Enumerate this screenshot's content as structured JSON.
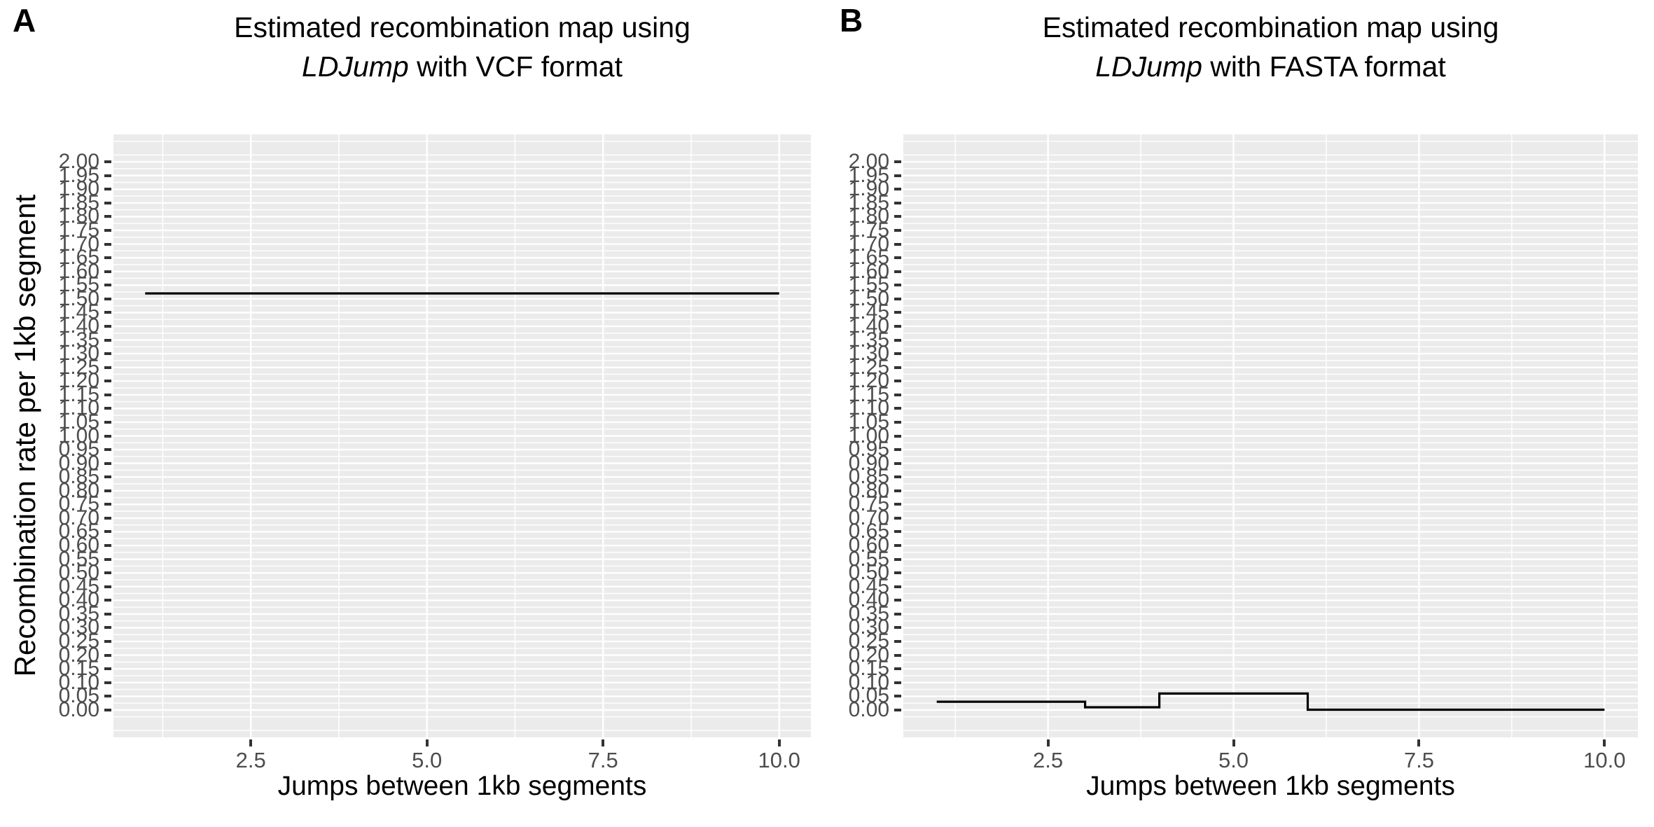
{
  "chart_data": [
    {
      "type": "line",
      "line_style": "step",
      "panel_label": "A",
      "title": "Estimated recombination map using LDJump with VCF format",
      "title_line1": "Estimated recombination map using",
      "title_italic": "LDJump",
      "title_line2_rest": " with VCF format",
      "xlabel": "Jumps between 1kb segments",
      "ylabel": "Recombination rate per 1kb segment",
      "xlim": [
        0.55,
        10.45
      ],
      "ylim": [
        -0.1,
        2.1
      ],
      "x_ticks": [
        2.5,
        5.0,
        7.5,
        10.0
      ],
      "x_tick_labels": [
        "2.5",
        "5.0",
        "7.5",
        "10.0"
      ],
      "y_tick_min": 0.0,
      "y_tick_max": 2.0,
      "y_tick_step": 0.05,
      "y_tick_labels": [
        "0.00",
        "0.05",
        "0.10",
        "0.15",
        "0.20",
        "0.25",
        "0.30",
        "0.35",
        "0.40",
        "0.45",
        "0.50",
        "0.55",
        "0.60",
        "0.65",
        "0.70",
        "0.75",
        "0.80",
        "0.85",
        "0.90",
        "0.95",
        "1.00",
        "1.05",
        "1.10",
        "1.15",
        "1.20",
        "1.25",
        "1.30",
        "1.35",
        "1.40",
        "1.45",
        "1.50",
        "1.55",
        "1.60",
        "1.65",
        "1.70",
        "1.75",
        "1.80",
        "1.85",
        "1.90",
        "1.95",
        "2.00"
      ],
      "segments": [
        {
          "x_start": 1.0,
          "x_end": 10.0,
          "y": 1.52
        }
      ],
      "grid": {
        "major_x": [
          2.5,
          5.0,
          7.5,
          10.0
        ],
        "minor_x": [
          1.25,
          3.75,
          6.25,
          8.75
        ],
        "major_y_every": 0.05,
        "minor_y_every": 0.025,
        "style": "white gridlines on grey panel"
      },
      "legend": "none",
      "colors": {
        "panel_background": "#EBEBEB",
        "gridline": "#FFFFFF",
        "data_line": "#000000",
        "tick_mark": "#333333",
        "tick_label": "#4D4D4D",
        "title_text": "#000000"
      }
    },
    {
      "type": "line",
      "line_style": "step",
      "panel_label": "B",
      "title": "Estimated recombination map using LDJump with FASTA format",
      "title_line1": "Estimated recombination map using",
      "title_italic": "LDJump",
      "title_line2_rest": " with FASTA format",
      "xlabel": "Jumps between 1kb segments",
      "ylabel": "",
      "xlim": [
        0.55,
        10.45
      ],
      "ylim": [
        -0.1,
        2.1
      ],
      "x_ticks": [
        2.5,
        5.0,
        7.5,
        10.0
      ],
      "x_tick_labels": [
        "2.5",
        "5.0",
        "7.5",
        "10.0"
      ],
      "y_tick_min": 0.0,
      "y_tick_max": 2.0,
      "y_tick_step": 0.05,
      "y_tick_labels": [
        "0.00",
        "0.05",
        "0.10",
        "0.15",
        "0.20",
        "0.25",
        "0.30",
        "0.35",
        "0.40",
        "0.45",
        "0.50",
        "0.55",
        "0.60",
        "0.65",
        "0.70",
        "0.75",
        "0.80",
        "0.85",
        "0.90",
        "0.95",
        "1.00",
        "1.05",
        "1.10",
        "1.15",
        "1.20",
        "1.25",
        "1.30",
        "1.35",
        "1.40",
        "1.45",
        "1.50",
        "1.55",
        "1.60",
        "1.65",
        "1.70",
        "1.75",
        "1.80",
        "1.85",
        "1.90",
        "1.95",
        "2.00"
      ],
      "segments": [
        {
          "x_start": 1.0,
          "x_end": 3.0,
          "y": 0.03
        },
        {
          "x_start": 3.0,
          "x_end": 4.0,
          "y": 0.01
        },
        {
          "x_start": 4.0,
          "x_end": 6.0,
          "y": 0.06
        },
        {
          "x_start": 6.0,
          "x_end": 10.0,
          "y": 0.001
        }
      ],
      "grid": {
        "major_x": [
          2.5,
          5.0,
          7.5,
          10.0
        ],
        "minor_x": [
          1.25,
          3.75,
          6.25,
          8.75
        ],
        "major_y_every": 0.05,
        "minor_y_every": 0.025,
        "style": "white gridlines on grey panel"
      },
      "legend": "none",
      "colors": {
        "panel_background": "#EBEBEB",
        "gridline": "#FFFFFF",
        "data_line": "#000000",
        "tick_mark": "#333333",
        "tick_label": "#4D4D4D",
        "title_text": "#000000"
      }
    }
  ]
}
